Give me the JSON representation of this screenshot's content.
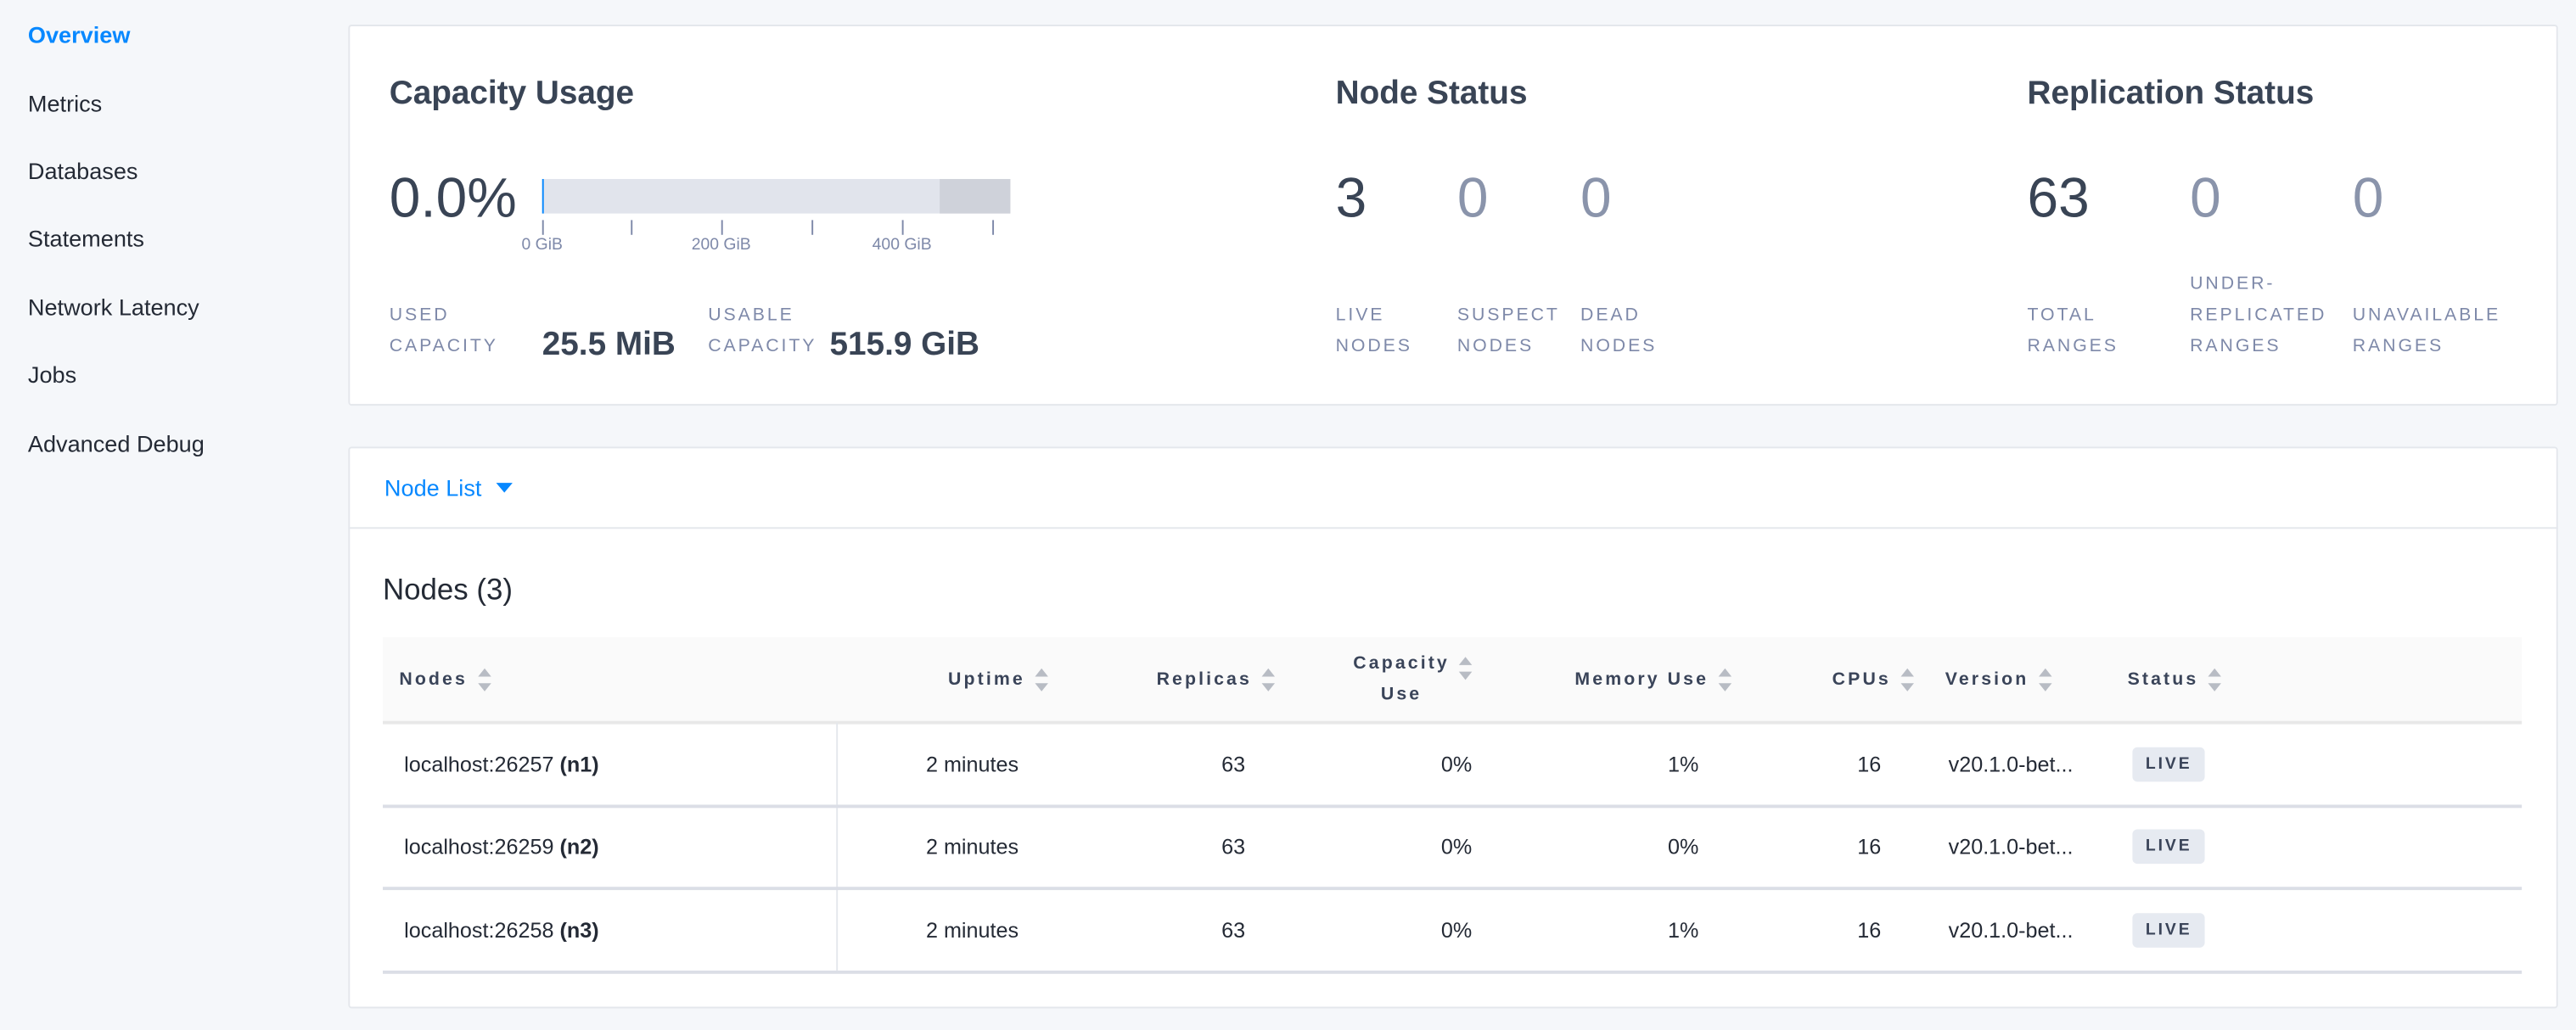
{
  "sidebar": {
    "items": [
      {
        "label": "Overview",
        "active": true
      },
      {
        "label": "Metrics"
      },
      {
        "label": "Databases"
      },
      {
        "label": "Statements"
      },
      {
        "label": "Network Latency"
      },
      {
        "label": "Jobs"
      },
      {
        "label": "Advanced Debug"
      }
    ]
  },
  "capacity": {
    "title": "Capacity Usage",
    "percent": "0.0%",
    "used_fraction": 0.0,
    "axis_ticks": [
      "0 GiB",
      "200 GiB",
      "400 GiB"
    ],
    "used_label_1": "Used",
    "used_label_2": "Capacity",
    "used_value": "25.5 MiB",
    "usable_label_1": "Usable",
    "usable_label_2": "Capacity",
    "usable_value": "515.9 GiB"
  },
  "node_status": {
    "title": "Node Status",
    "stats": [
      {
        "value": "3",
        "l1": "Live",
        "l2": "Nodes"
      },
      {
        "value": "0",
        "l1": "Suspect",
        "l2": "Nodes"
      },
      {
        "value": "0",
        "l1": "Dead",
        "l2": "Nodes"
      }
    ]
  },
  "replication": {
    "title": "Replication Status",
    "stats": [
      {
        "value": "63",
        "l1": "",
        "l2": "Total",
        "l3": "Ranges"
      },
      {
        "value": "0",
        "l1": "Under-",
        "l2": "Replicated",
        "l3": "Ranges"
      },
      {
        "value": "0",
        "l1": "",
        "l2": "Unavailable",
        "l3": "Ranges"
      }
    ]
  },
  "node_list": {
    "dropdown_label": "Node List",
    "title": "Nodes (3)",
    "columns": [
      "Nodes",
      "Uptime",
      "Replicas",
      "Capacity",
      "Use",
      "Memory Use",
      "CPUs",
      "Version",
      "Status"
    ],
    "rows": [
      {
        "host": "localhost:26257",
        "id": "(n1)",
        "uptime": "2 minutes",
        "replicas": "63",
        "capacity": "0%",
        "memory": "1%",
        "cpus": "16",
        "version": "v20.1.0-bet...",
        "status": "LIVE"
      },
      {
        "host": "localhost:26259",
        "id": "(n2)",
        "uptime": "2 minutes",
        "replicas": "63",
        "capacity": "0%",
        "memory": "0%",
        "cpus": "16",
        "version": "v20.1.0-bet...",
        "status": "LIVE"
      },
      {
        "host": "localhost:26258",
        "id": "(n3)",
        "uptime": "2 minutes",
        "replicas": "63",
        "capacity": "0%",
        "memory": "1%",
        "cpus": "16",
        "version": "v20.1.0-bet...",
        "status": "LIVE"
      }
    ]
  },
  "colors": {
    "accent": "#0788ff",
    "text": "#394455",
    "muted": "#7e89a9"
  }
}
